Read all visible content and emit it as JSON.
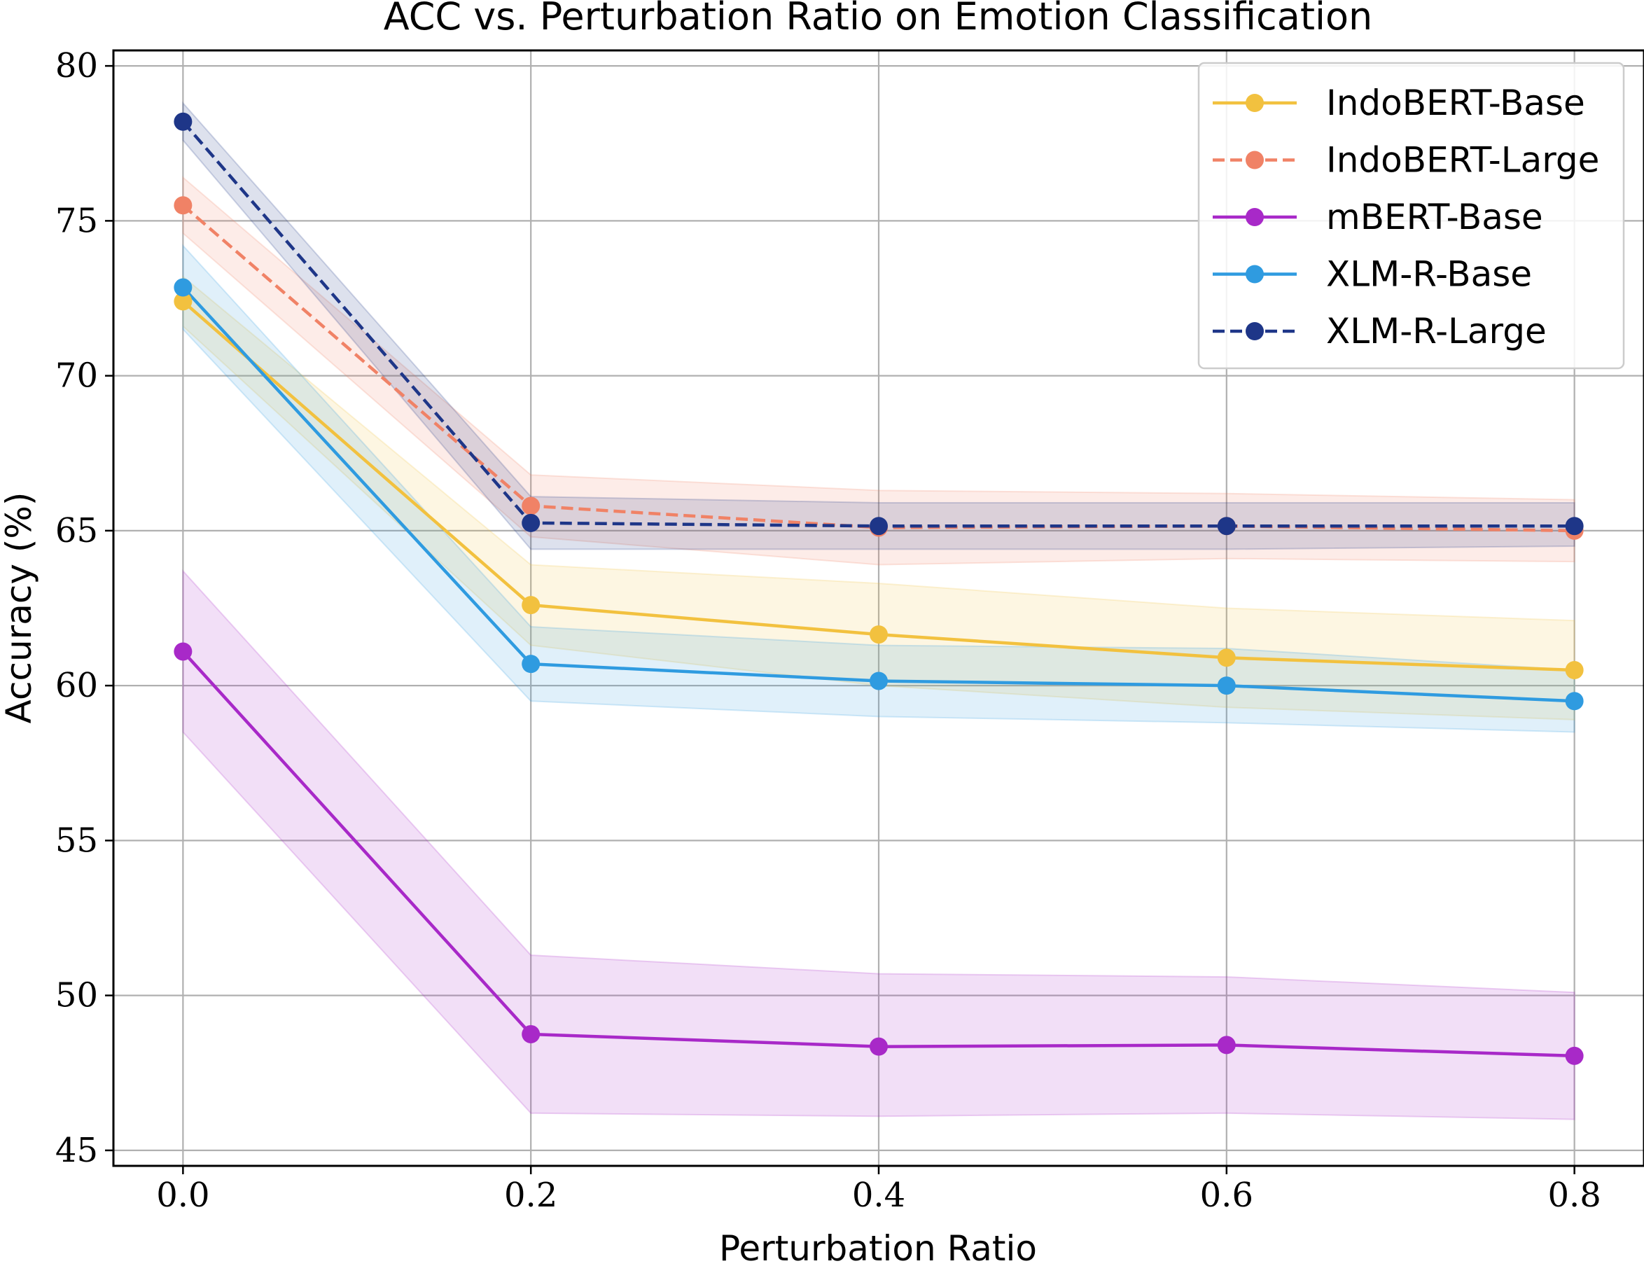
{
  "chart_data": {
    "type": "line",
    "title": "ACC vs. Perturbation Ratio on Emotion Classification",
    "xlabel": "Perturbation Ratio",
    "ylabel": "Accuracy (%)",
    "x": [
      0.0,
      0.2,
      0.4,
      0.6,
      0.8
    ],
    "x_tick_labels": [
      "0.0",
      "0.2",
      "0.4",
      "0.6",
      "0.8"
    ],
    "y_ticks": [
      45,
      50,
      55,
      60,
      65,
      70,
      75,
      80
    ],
    "y_tick_labels": [
      "45",
      "50",
      "55",
      "60",
      "65",
      "70",
      "75",
      "80"
    ],
    "xlim": [
      -0.04,
      0.84
    ],
    "ylim": [
      44.5,
      80.5
    ],
    "grid": true,
    "legend_position": "top-right",
    "series": [
      {
        "name": "IndoBERT-Base",
        "color": "#F2C13F",
        "line_style": "solid",
        "values": [
          72.4,
          62.6,
          61.65,
          60.9,
          60.5
        ],
        "band_lower": [
          71.6,
          61.3,
          60.0,
          59.3,
          58.9
        ],
        "band_upper": [
          73.2,
          63.9,
          63.3,
          62.5,
          62.1
        ]
      },
      {
        "name": "IndoBERT-Large",
        "color": "#F08266",
        "line_style": "dashed",
        "values": [
          75.5,
          65.8,
          65.1,
          65.15,
          65.0
        ],
        "band_lower": [
          74.6,
          64.8,
          63.9,
          64.1,
          64.0
        ],
        "band_upper": [
          76.4,
          66.8,
          66.3,
          66.2,
          66.0
        ]
      },
      {
        "name": "mBERT-Base",
        "color": "#A829C8",
        "line_style": "solid",
        "values": [
          61.1,
          48.75,
          48.35,
          48.4,
          48.05
        ],
        "band_lower": [
          58.5,
          46.2,
          46.1,
          46.2,
          46.0
        ],
        "band_upper": [
          63.7,
          51.3,
          50.7,
          50.6,
          50.1
        ]
      },
      {
        "name": "XLM-R-Base",
        "color": "#2F9BE0",
        "line_style": "solid",
        "values": [
          72.85,
          60.7,
          60.15,
          60.0,
          59.5
        ],
        "band_lower": [
          71.5,
          59.5,
          59.0,
          58.8,
          58.5
        ],
        "band_upper": [
          74.2,
          61.9,
          61.3,
          61.2,
          60.5
        ]
      },
      {
        "name": "XLM-R-Large",
        "color": "#1E3688",
        "line_style": "dashed",
        "values": [
          78.2,
          65.25,
          65.15,
          65.15,
          65.15
        ],
        "band_lower": [
          77.6,
          64.4,
          64.4,
          64.4,
          64.5
        ],
        "band_upper": [
          78.8,
          66.1,
          65.9,
          65.9,
          65.9
        ]
      }
    ]
  }
}
